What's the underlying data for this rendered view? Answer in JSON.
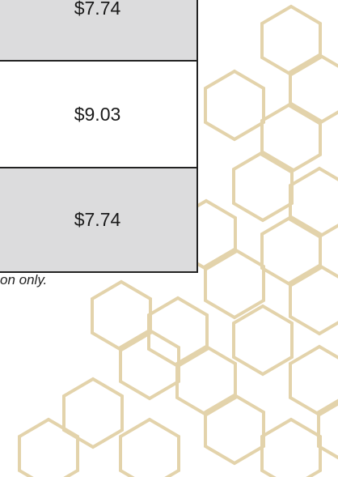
{
  "table": {
    "rows": [
      [
        "$7.74"
      ],
      [
        "$9.03"
      ],
      [
        "$7.74"
      ]
    ]
  },
  "note": "on only."
}
